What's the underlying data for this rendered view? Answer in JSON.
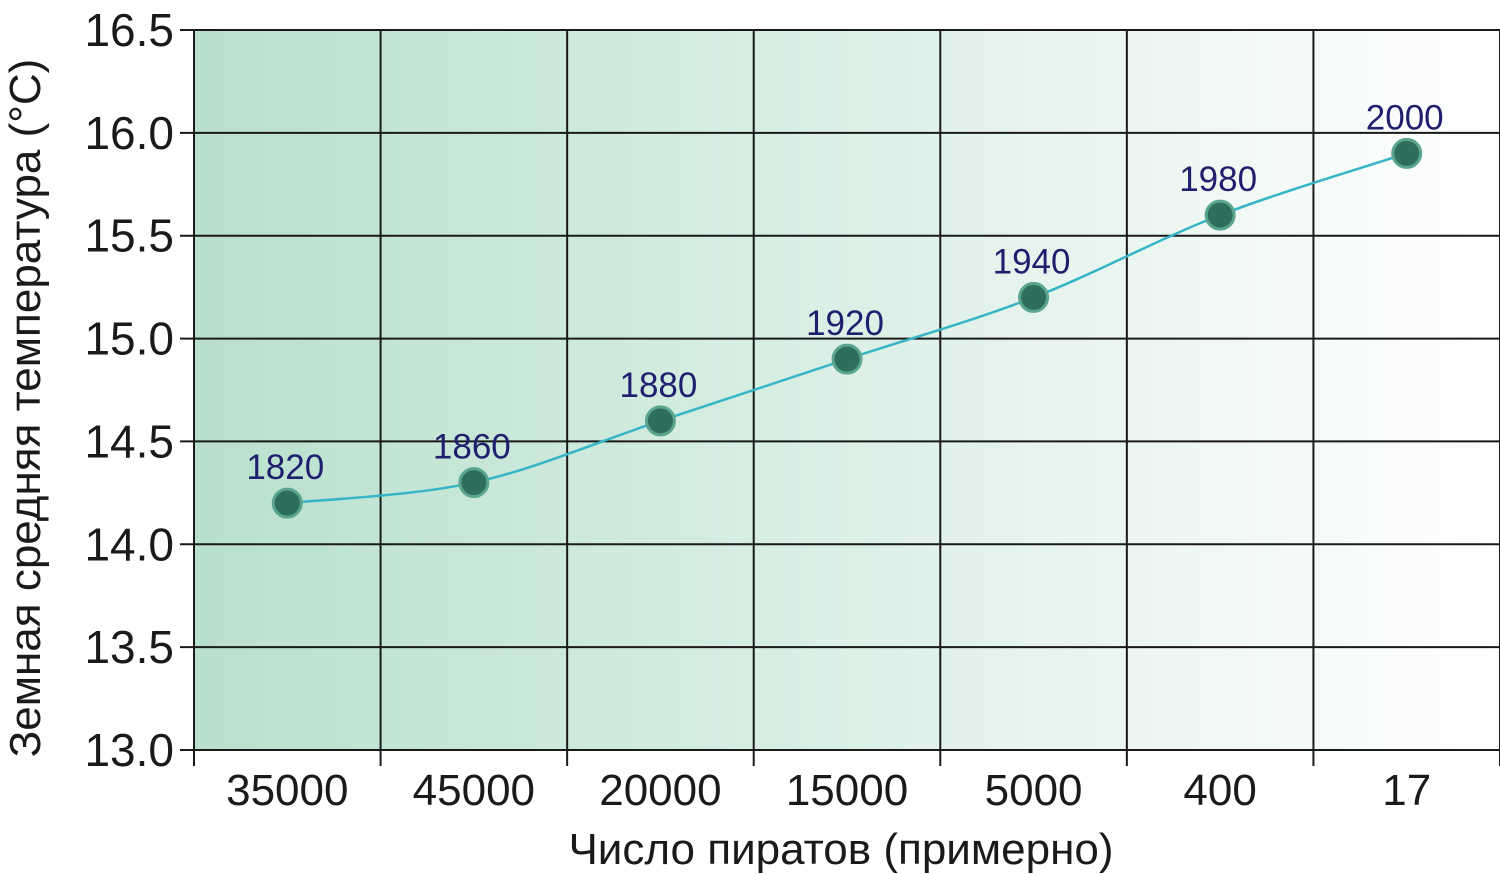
{
  "chart_data": {
    "type": "line",
    "title": "",
    "xlabel": "Число пиратов (примерно)",
    "ylabel": "Земная средняя температура (°C)",
    "categories": [
      "35000",
      "45000",
      "20000",
      "15000",
      "5000",
      "400",
      "17"
    ],
    "series": [
      {
        "values": [
          14.2,
          14.3,
          14.6,
          14.9,
          15.2,
          15.6,
          15.9
        ],
        "point_labels": [
          "1820",
          "1860",
          "1880",
          "1920",
          "1940",
          "1980",
          "2000"
        ]
      }
    ],
    "yticks": [
      "13.0",
      "13.5",
      "14.0",
      "14.5",
      "15.0",
      "15.5",
      "16.0",
      "16.5"
    ],
    "ylim": [
      13.0,
      16.5
    ],
    "grid": true,
    "legend": "none",
    "colors": {
      "line": "#35b5c6",
      "marker_fill": "#2e6e5d",
      "marker_stroke": "#5aa58e",
      "point_label": "#1f1f6e",
      "grid": "#1a1a1a",
      "background_left": "#b8e0cd",
      "background_right": "#ffffff"
    }
  }
}
